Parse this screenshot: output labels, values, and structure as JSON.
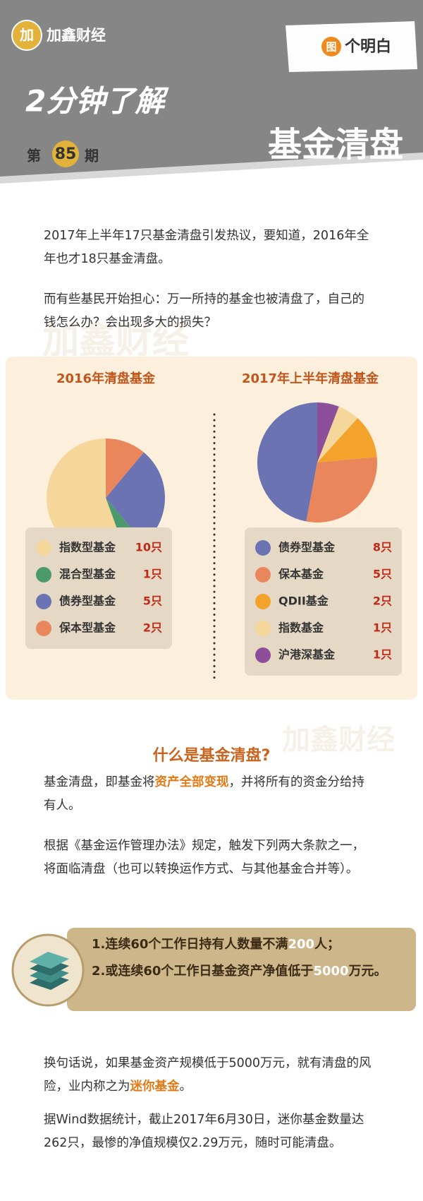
{
  "header": {
    "logo_mark": "加",
    "logo": "加鑫财经",
    "badge_icon": "图",
    "badge": "个明白",
    "title": "2分钟了解",
    "issue_prefix": "第",
    "issue": "85",
    "issue_suffix": "期",
    "topic": "基金清盘"
  },
  "watermarks": [
    "加鑫财经",
    "加鑫财经"
  ],
  "intro": [
    [
      {
        "text": "2017年上半年17只基金清盘引发热议，要知道，2016年全年也才18只基金清盘。"
      }
    ],
    [
      {
        "text": "而有些基民开始担心：万一所持的基金也被清盘了，自己的钱怎么办？会出现多大的损失？"
      }
    ]
  ],
  "chart_data": [
    {
      "type": "pie",
      "title": "2016年清盘基金",
      "categories": [
        "指数型基金",
        "混合型基金",
        "债券型基金",
        "保本型基金"
      ],
      "values": [
        10,
        1,
        5,
        2
      ],
      "value_labels": [
        "10只",
        "1只",
        "5只",
        "2只"
      ],
      "colors": [
        "#f5d79b",
        "#4b9a6c",
        "#6b73b2",
        "#e9865c"
      ]
    },
    {
      "type": "pie",
      "title": "2017年上半年清盘基金",
      "categories": [
        "债券型基金",
        "保本基金",
        "QDII基金",
        "指数基金",
        "沪港深基金"
      ],
      "values": [
        8,
        5,
        2,
        1,
        1
      ],
      "value_labels": [
        "8只",
        "5只",
        "2只",
        "1只",
        "1只"
      ],
      "colors": [
        "#6b73b2",
        "#e9865c",
        "#f3a32b",
        "#f5d79b",
        "#8d4f99"
      ]
    }
  ],
  "section": {
    "title": "什么是基金清盘?",
    "paragraphs": [
      [
        {
          "text": "基金清盘，即基金将"
        },
        {
          "text": "资产全部变现",
          "emphasis": true
        },
        {
          "text": "，并将所有的资金分给持有人。"
        }
      ],
      [
        {
          "text": "根据《基金运作管理办法》规定，触发下列两大条款之一，将面临清盘（也可以转换运作方式、与其他基金合并等）。"
        }
      ]
    ],
    "conditions": [
      [
        {
          "text": "1."
        },
        {
          "text": "连续60个工作日持有人数量不满"
        },
        {
          "text": "200",
          "emphasis": true
        },
        {
          "text": "人；"
        }
      ],
      [
        {
          "text": "2."
        },
        {
          "text": "或连续60个工作日基金资产净值低于"
        },
        {
          "text": "5000",
          "emphasis": true
        },
        {
          "text": "万元。"
        }
      ]
    ],
    "closing": [
      [
        {
          "text": "换句话说，如果基金资产规模低于5000万元，就有清盘的风险，业内称之为"
        },
        {
          "text": "迷你基金",
          "emphasis": true
        },
        {
          "text": "。"
        }
      ],
      [
        {
          "text": "据Wind数据统计，截止2017年6月30日，迷你基金数量达262只，最惨的净值规模仅2.29万元，随时可能清盘。"
        }
      ]
    ]
  }
}
